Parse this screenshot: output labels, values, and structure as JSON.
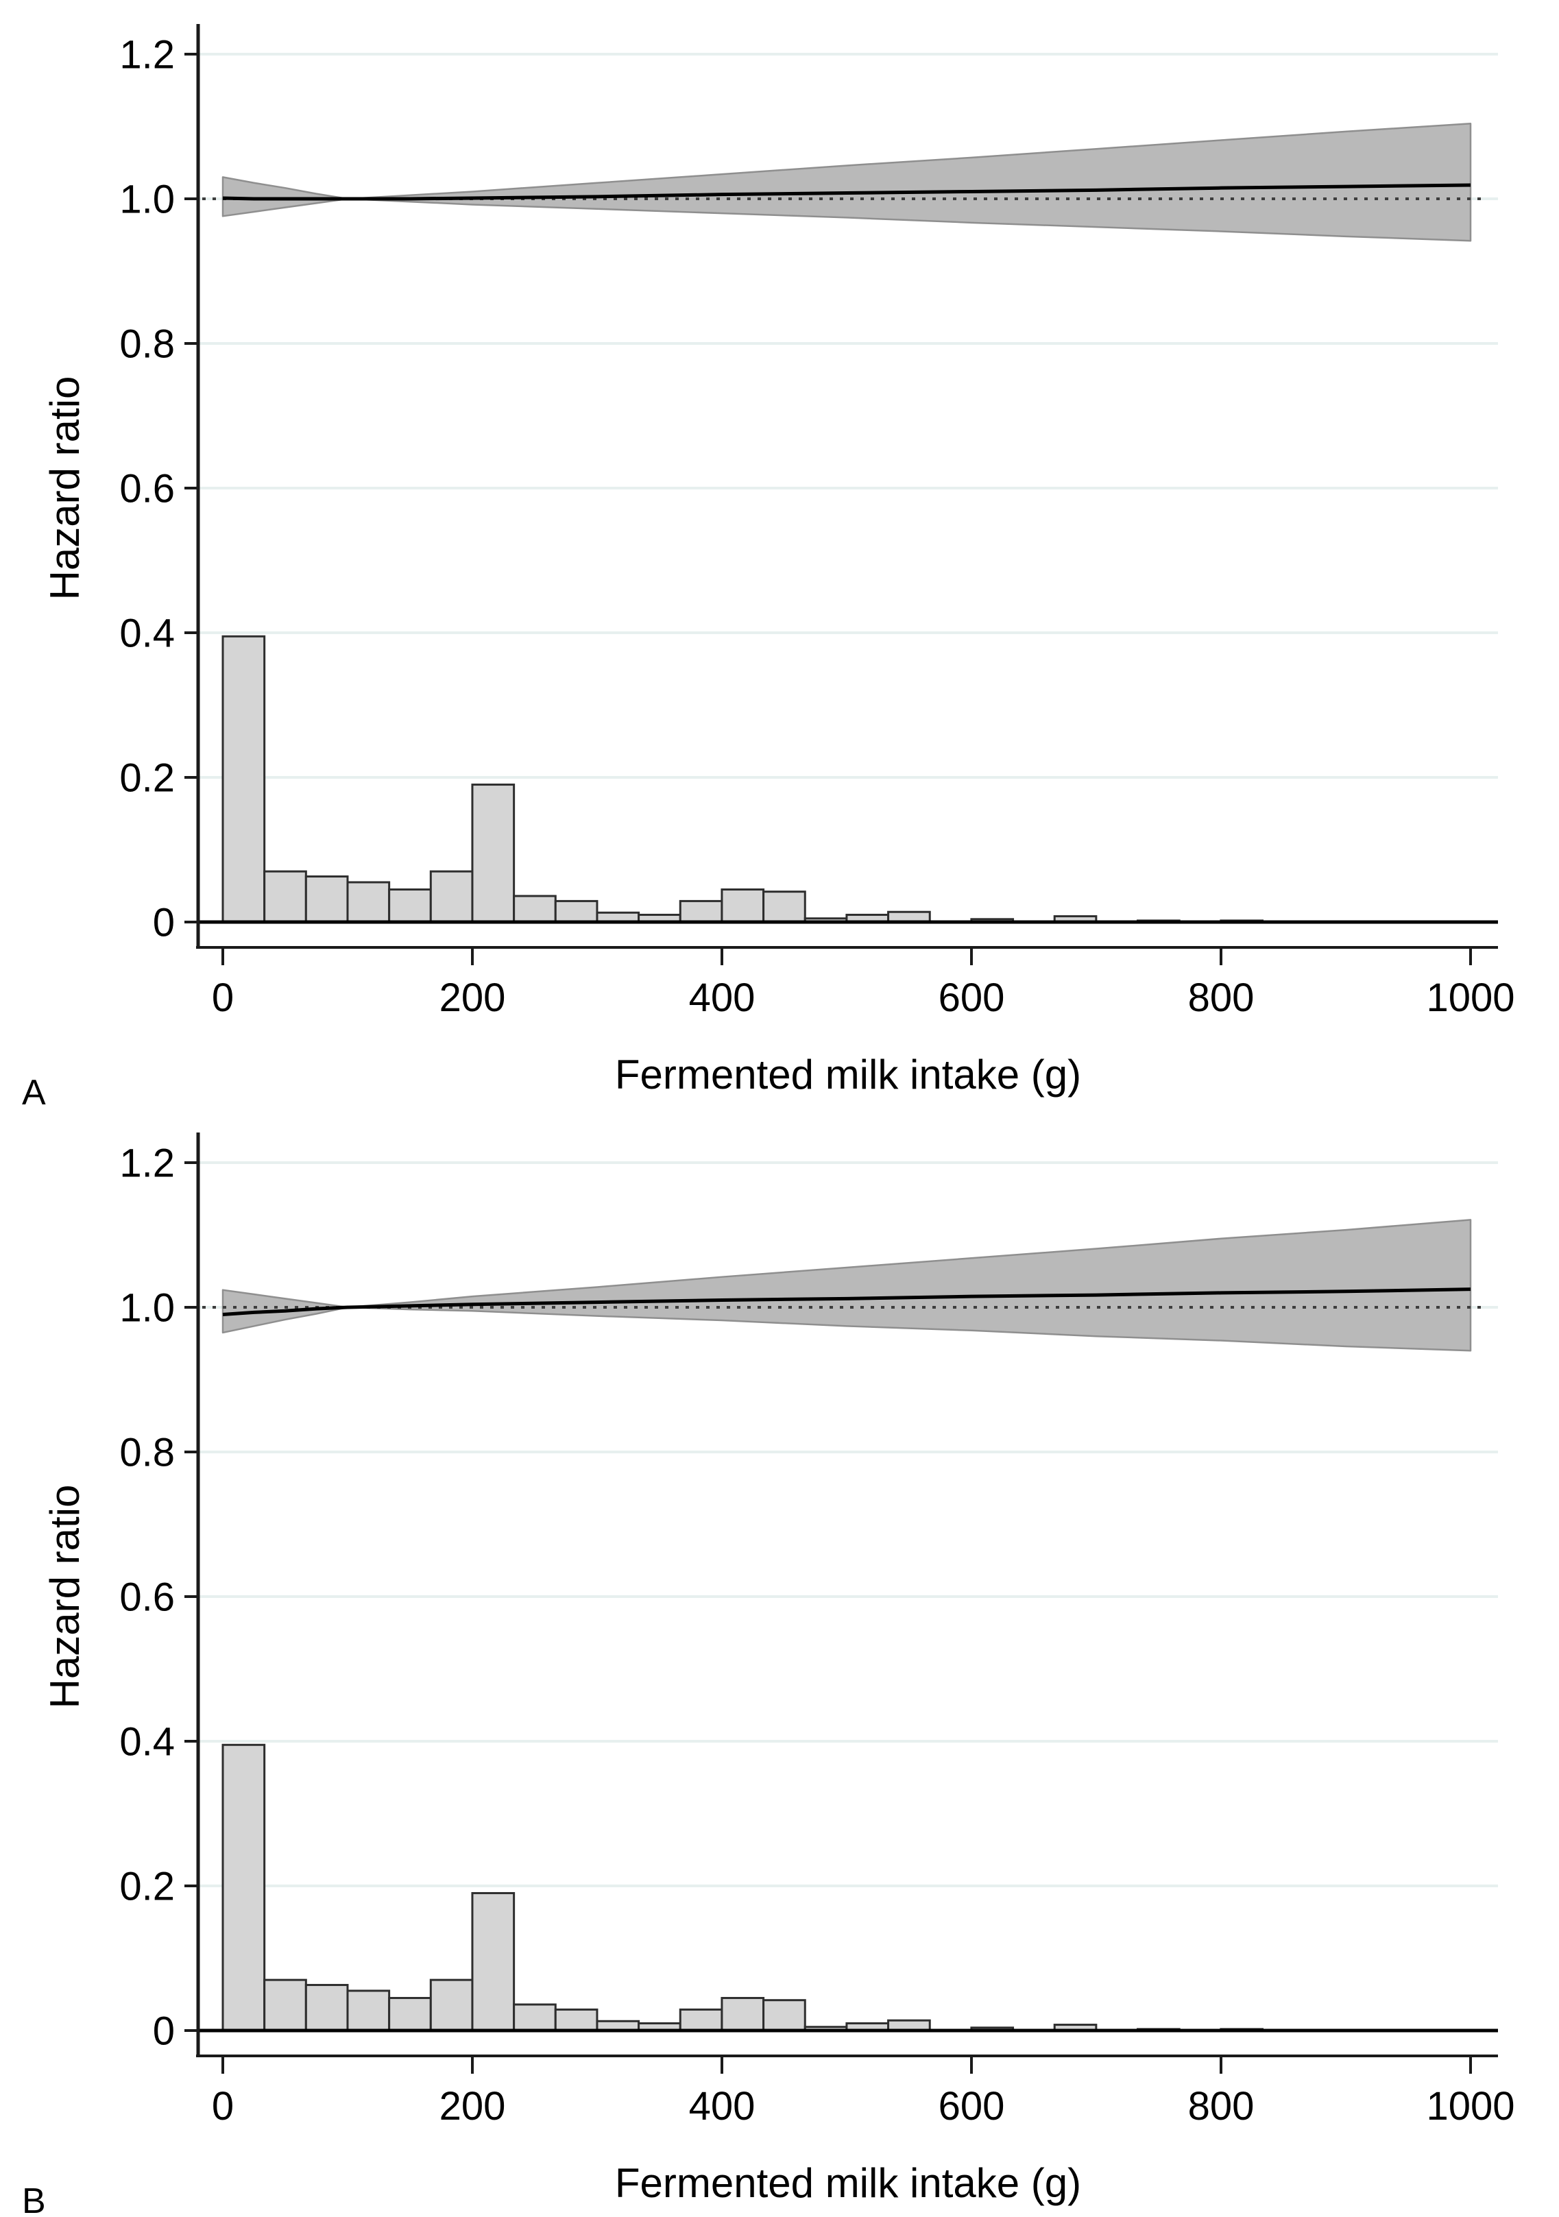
{
  "figure": {
    "xlabel": "Fermented milk intake (g)",
    "ylabel": "Hazard ratio",
    "panel_labels": [
      "A",
      "B"
    ]
  },
  "colors": {
    "background": "#ffffff",
    "grid": "#e7f0ef",
    "band_fill": "#b9b9b9",
    "band_edge": "#8f8f8f",
    "hr_line": "#000000",
    "reference_line": "#3d3d3d",
    "bar_fill": "#d5d5d5",
    "bar_edge": "#2e2e2e",
    "axis": "#1a1a1a",
    "text": "#000000"
  },
  "chart_data": [
    {
      "type": "line",
      "panel_label": "A",
      "title": "",
      "xlabel": "Fermented milk intake (g)",
      "ylabel": "Hazard ratio",
      "xlim": [
        0,
        1000
      ],
      "ylim": [
        0,
        1.25
      ],
      "grid": true,
      "legend": "none",
      "xticks": [
        0,
        200,
        400,
        600,
        800,
        1000
      ],
      "xtick_labels": [
        "0",
        "200",
        "400",
        "600",
        "800",
        "1000"
      ],
      "yticks": [
        0,
        0.2,
        0.4,
        0.6,
        0.8,
        1.0,
        1.2
      ],
      "ytick_labels": [
        "0",
        "0.2",
        "0.4",
        "0.6",
        "0.8",
        "1.0",
        "1.2"
      ],
      "reference_line_y": 1.0,
      "series": [
        {
          "name": "hazard-ratio",
          "type": "line",
          "x": [
            0,
            25,
            50,
            75,
            100,
            150,
            200,
            300,
            400,
            500,
            600,
            700,
            800,
            900,
            1000
          ],
          "y": [
            1.001,
            1.0,
            1.0,
            1.0,
            1.0,
            1.0,
            1.001,
            1.003,
            1.006,
            1.008,
            1.01,
            1.012,
            1.015,
            1.017,
            1.019
          ]
        },
        {
          "name": "95-percent-ci",
          "type": "band",
          "x": [
            0,
            25,
            50,
            75,
            100,
            150,
            200,
            300,
            400,
            500,
            600,
            700,
            800,
            900,
            1000
          ],
          "upper": [
            1.03,
            1.022,
            1.015,
            1.007,
            1.0,
            1.005,
            1.01,
            1.022,
            1.034,
            1.046,
            1.057,
            1.069,
            1.081,
            1.093,
            1.104
          ],
          "lower": [
            0.976,
            0.982,
            0.988,
            0.994,
            1.0,
            0.996,
            0.992,
            0.986,
            0.98,
            0.974,
            0.967,
            0.961,
            0.955,
            0.948,
            0.942
          ]
        }
      ],
      "histogram": {
        "name": "intake-distribution",
        "type": "bar",
        "bin_start": 0,
        "bin_width": 33.33,
        "heights": [
          0.395,
          0.07,
          0.063,
          0.055,
          0.045,
          0.07,
          0.19,
          0.036,
          0.029,
          0.013,
          0.01,
          0.029,
          0.045,
          0.042,
          0.005,
          0.01,
          0.014,
          0,
          0.004,
          0,
          0.008,
          0,
          0.002,
          0,
          0.002,
          0,
          0,
          0,
          0,
          0
        ]
      }
    },
    {
      "type": "line",
      "panel_label": "B",
      "title": "",
      "xlabel": "Fermented milk intake (g)",
      "ylabel": "Hazard ratio",
      "xlim": [
        0,
        1000
      ],
      "ylim": [
        0,
        1.25
      ],
      "grid": true,
      "legend": "none",
      "xticks": [
        0,
        200,
        400,
        600,
        800,
        1000
      ],
      "xtick_labels": [
        "0",
        "200",
        "400",
        "600",
        "800",
        "1000"
      ],
      "yticks": [
        0,
        0.2,
        0.4,
        0.6,
        0.8,
        1.0,
        1.2
      ],
      "ytick_labels": [
        "0",
        "0.2",
        "0.4",
        "0.6",
        "0.8",
        "1.0",
        "1.2"
      ],
      "reference_line_y": 1.0,
      "series": [
        {
          "name": "hazard-ratio",
          "type": "line",
          "x": [
            0,
            25,
            50,
            75,
            100,
            150,
            200,
            300,
            400,
            500,
            600,
            700,
            800,
            900,
            1000
          ],
          "y": [
            0.99,
            0.993,
            0.995,
            0.998,
            1.0,
            1.002,
            1.004,
            1.007,
            1.01,
            1.012,
            1.015,
            1.017,
            1.02,
            1.022,
            1.025
          ]
        },
        {
          "name": "95-percent-ci",
          "type": "band",
          "x": [
            0,
            25,
            50,
            75,
            100,
            150,
            200,
            300,
            400,
            500,
            600,
            700,
            800,
            900,
            1000
          ],
          "upper": [
            1.024,
            1.018,
            1.012,
            1.006,
            1.0,
            1.007,
            1.015,
            1.028,
            1.042,
            1.055,
            1.068,
            1.081,
            1.095,
            1.107,
            1.121
          ],
          "lower": [
            0.965,
            0.974,
            0.983,
            0.991,
            1.0,
            0.997,
            0.995,
            0.988,
            0.982,
            0.974,
            0.968,
            0.96,
            0.954,
            0.946,
            0.94
          ]
        }
      ],
      "histogram": {
        "name": "intake-distribution",
        "type": "bar",
        "bin_start": 0,
        "bin_width": 33.33,
        "heights": [
          0.395,
          0.07,
          0.063,
          0.055,
          0.045,
          0.07,
          0.19,
          0.036,
          0.029,
          0.013,
          0.01,
          0.029,
          0.045,
          0.042,
          0.005,
          0.01,
          0.014,
          0,
          0.004,
          0,
          0.008,
          0,
          0.002,
          0,
          0.002,
          0,
          0,
          0,
          0,
          0
        ]
      }
    }
  ]
}
